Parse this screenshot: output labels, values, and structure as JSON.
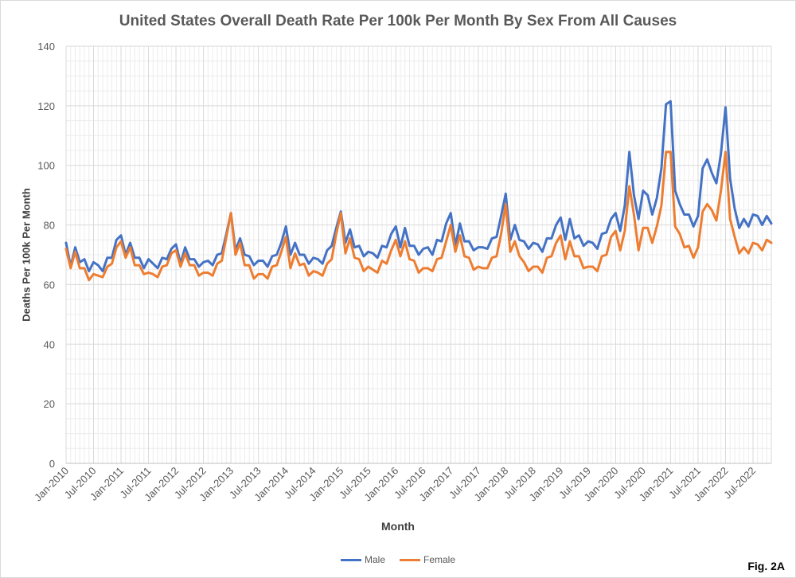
{
  "chart_data": {
    "type": "line",
    "title": "United States Overall Death Rate Per 100k Per Month By Sex From All Causes",
    "xlabel": "Month",
    "ylabel": "Deaths Per 100k Per Month",
    "ylim": [
      0,
      140
    ],
    "yticks": [
      "0",
      "20",
      "40",
      "60",
      "80",
      "100",
      "120",
      "140"
    ],
    "xtick_labels": [
      "Jan-2010",
      "Jul-2010",
      "Jan-2011",
      "Jul-2011",
      "Jan-2012",
      "Jul-2012",
      "Jan-2013",
      "Jul-2013",
      "Jan-2014",
      "Jul-2014",
      "Jan-2015",
      "Jul-2015",
      "Jan-2016",
      "Jul-2016",
      "Jan-2017",
      "Jul-2017",
      "Jan-2018",
      "Jul-2018",
      "Jan-2019",
      "Jul-2019",
      "Jan-2020",
      "Jul-2020",
      "Jan-2021",
      "Jul-2021",
      "Jan-2022",
      "Jul-2022"
    ],
    "x_start": "Jan-2010",
    "x_end": "Dec-2022",
    "grid": true,
    "legend_position": "bottom",
    "series": [
      {
        "name": "Male",
        "color": "#4472C4",
        "values": [
          74,
          66,
          72.5,
          67.5,
          68.5,
          64.5,
          67.5,
          66.5,
          64.5,
          69,
          69,
          75,
          76.5,
          70,
          74,
          69,
          69,
          65.5,
          68.5,
          67,
          65.5,
          69,
          68.5,
          72,
          73.5,
          67,
          72.5,
          68.5,
          68.5,
          66,
          67.5,
          68,
          66.5,
          70,
          70.5,
          77,
          84,
          71.5,
          75.5,
          70,
          69.5,
          66.5,
          68,
          68,
          66,
          69.5,
          70,
          74,
          79.5,
          70,
          74,
          70,
          70,
          67,
          69,
          68.5,
          67,
          71.5,
          73,
          79,
          84.5,
          74,
          78.5,
          72.5,
          73,
          69.5,
          71,
          70.5,
          69,
          73,
          72.5,
          77,
          79.5,
          72.5,
          79,
          73,
          73,
          70,
          72,
          72.5,
          70,
          75,
          74.5,
          80.5,
          84,
          73,
          80.5,
          74.5,
          74.5,
          71.5,
          72.5,
          72.5,
          72,
          75.5,
          76,
          83,
          90.5,
          75,
          80,
          75,
          74.5,
          72,
          74,
          73.5,
          71,
          75.5,
          75.5,
          80,
          82.5,
          75,
          82,
          75.5,
          76.5,
          73,
          74.5,
          74,
          72,
          77,
          77.5,
          82,
          84,
          78,
          86.5,
          104.5,
          90,
          82,
          91.5,
          90,
          83.5,
          89,
          99,
          120.5,
          121.5,
          91.5,
          87,
          83.5,
          83.5,
          79.5,
          83,
          99,
          102,
          97.5,
          94,
          104,
          119.5,
          95.5,
          85.5,
          79,
          82,
          79.5,
          83.5,
          83,
          80,
          83,
          80.5
        ]
      },
      {
        "name": "Female",
        "color": "#ED7D31",
        "values": [
          72,
          65.5,
          71,
          65.5,
          65.5,
          61.5,
          63.5,
          63,
          62.5,
          66,
          67,
          72.5,
          74.5,
          69,
          72.5,
          66.5,
          66.5,
          63.5,
          64,
          63.5,
          62.5,
          66,
          66.5,
          70.5,
          71.5,
          66,
          70.5,
          66.5,
          66.5,
          63,
          64,
          64,
          63,
          67,
          68,
          76,
          84,
          70,
          74,
          66.5,
          66.5,
          62,
          63.5,
          63.5,
          62,
          66,
          66.5,
          71,
          76,
          65.5,
          70.5,
          66.5,
          67,
          63,
          64.5,
          64,
          63,
          67,
          68.5,
          77,
          84,
          70.5,
          75.5,
          69,
          68.5,
          64.5,
          66,
          65,
          64,
          68,
          67,
          71.5,
          75,
          69.5,
          74.5,
          68.5,
          68,
          64,
          65.5,
          65.5,
          64.5,
          68.5,
          69,
          74.5,
          80,
          71,
          76.5,
          69.5,
          69,
          65,
          66,
          65.5,
          65.5,
          69,
          69.5,
          77,
          87,
          71,
          74.5,
          69.5,
          67.5,
          64.5,
          66,
          66,
          64,
          69,
          69.5,
          74,
          76.5,
          68.5,
          74.5,
          69.5,
          69.5,
          65.5,
          66,
          66,
          64.5,
          69.5,
          70,
          76,
          78,
          71.5,
          78,
          93,
          83.5,
          71.5,
          79,
          79,
          74,
          79.5,
          86.5,
          104.5,
          104.5,
          79.5,
          77,
          72.5,
          73,
          69,
          72.5,
          84.5,
          87,
          85,
          81.5,
          91.5,
          104.5,
          82,
          76,
          70.5,
          72.5,
          70.5,
          74,
          73.5,
          71.5,
          75,
          74
        ]
      }
    ]
  },
  "legend": [
    {
      "label": "Male",
      "color": "#4472C4"
    },
    {
      "label": "Female",
      "color": "#ED7D31"
    }
  ],
  "fig_label": "Fig. 2A"
}
